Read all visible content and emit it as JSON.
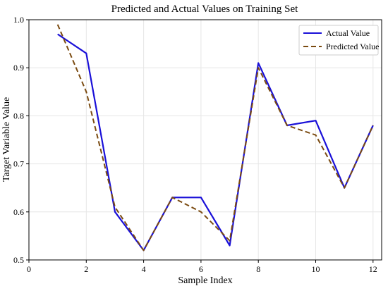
{
  "chart_data": {
    "type": "line",
    "title": "Predicted and Actual Values on Training Set",
    "xlabel": "Sample Index",
    "ylabel": "Target Variable Value",
    "xlim": [
      0,
      12.3
    ],
    "ylim": [
      0.5,
      1.0
    ],
    "xticks": [
      0,
      2,
      4,
      6,
      8,
      10,
      12
    ],
    "yticks": [
      0.5,
      0.6,
      0.7,
      0.8,
      0.9,
      1.0
    ],
    "xtick_labels": [
      "0",
      "2",
      "4",
      "6",
      "8",
      "10",
      "12"
    ],
    "ytick_labels": [
      "0.5",
      "0.6",
      "0.7",
      "0.8",
      "0.9",
      "1.0"
    ],
    "grid": true,
    "legend_position": "top-right",
    "x": [
      1,
      2,
      3,
      4,
      5,
      6,
      7,
      8,
      9,
      10,
      11,
      12
    ],
    "series": [
      {
        "name": "Actual Value",
        "color": "#1a10d8",
        "style": "solid",
        "values": [
          0.97,
          0.93,
          0.6,
          0.52,
          0.63,
          0.63,
          0.53,
          0.91,
          0.78,
          0.79,
          0.65,
          0.78
        ]
      },
      {
        "name": "Predicted Value",
        "color": "#7a4a10",
        "style": "dashed",
        "values": [
          0.99,
          0.85,
          0.61,
          0.52,
          0.63,
          0.6,
          0.54,
          0.9,
          0.78,
          0.76,
          0.65,
          0.78
        ]
      }
    ]
  }
}
